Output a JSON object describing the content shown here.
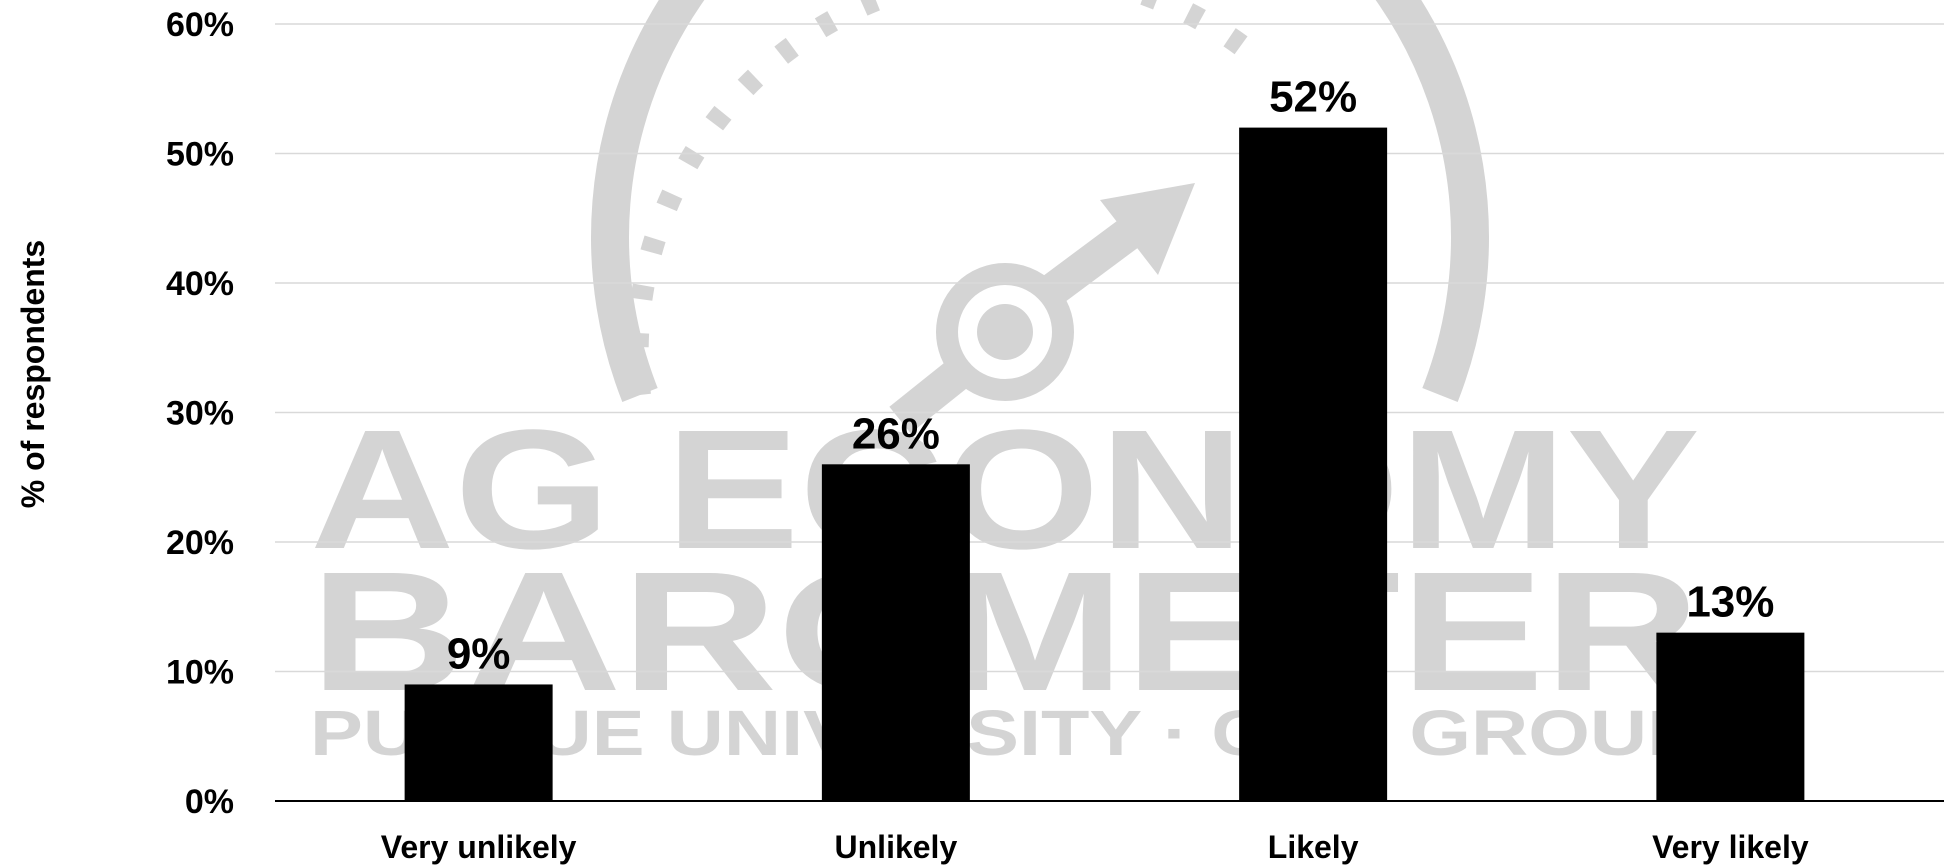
{
  "chart_data": {
    "type": "bar",
    "categories": [
      "Very unlikely",
      "Unlikely",
      "Likely",
      "Very likely"
    ],
    "values": [
      9,
      26,
      52,
      13
    ],
    "data_labels": [
      "9%",
      "26%",
      "52%",
      "13%"
    ],
    "title": "",
    "xlabel": "",
    "ylabel": "% of respondents",
    "ylim": [
      0,
      60
    ],
    "yticks": [
      0,
      10,
      20,
      30,
      40,
      50,
      60
    ],
    "ytick_labels": [
      "0%",
      "10%",
      "20%",
      "30%",
      "40%",
      "50%",
      "60%"
    ],
    "grid": true,
    "legend": "none",
    "bar_color": "#000000",
    "grid_color": "#d9d9d9"
  },
  "watermark": {
    "line1": "AG ECONOMY",
    "line2": "BAROMETER",
    "line3": "PURDUE UNIVERSITY · CME GROUP",
    "icon": "gauge-arrow-icon",
    "color": "#d4d4d4"
  }
}
